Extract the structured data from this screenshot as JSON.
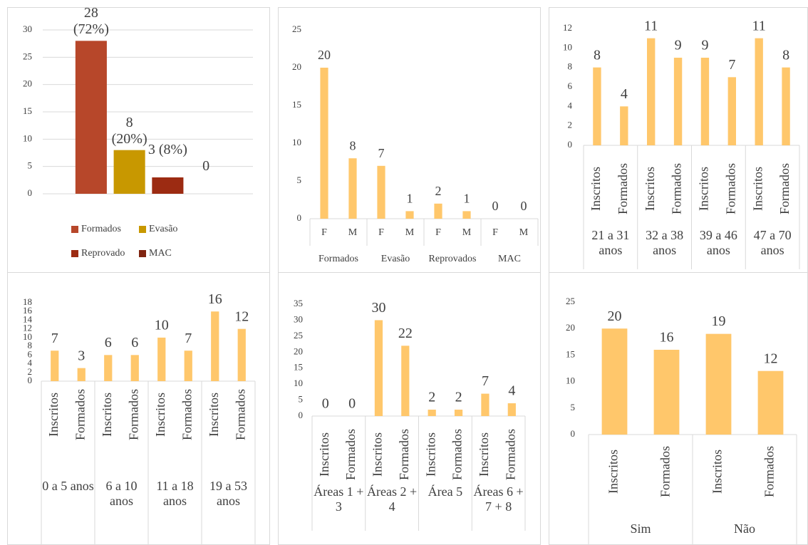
{
  "chart_data": [
    {
      "type": "bar",
      "categories": [
        "Formados",
        "Evasão",
        "Reprovado",
        "MAC"
      ],
      "values": [
        28,
        8,
        3,
        0
      ],
      "value_labels": [
        "28 (72%)",
        "8 (20%)",
        "3 (8%)",
        "0"
      ],
      "colors": [
        "#b7472a",
        "#c89800",
        "#9c2b12",
        "#7f2410"
      ],
      "ylim": [
        0,
        30
      ],
      "yticks": [
        0,
        5,
        10,
        15,
        20,
        25,
        30
      ],
      "grid": true,
      "legend": "bottom"
    },
    {
      "type": "bar",
      "categories": [
        "F",
        "M",
        "F",
        "M",
        "F",
        "M",
        "F",
        "M"
      ],
      "groups": [
        "Formados",
        "Evasão",
        "Reprovados",
        "MAC"
      ],
      "values": [
        20,
        8,
        7,
        1,
        2,
        1,
        0,
        0
      ],
      "color": "#ffc76b",
      "ylim": [
        0,
        25
      ],
      "yticks": [
        0,
        5,
        10,
        15,
        20,
        25
      ],
      "grid": false
    },
    {
      "type": "bar",
      "categories": [
        "Inscritos",
        "Formados",
        "Inscritos",
        "Formados",
        "Inscritos",
        "Formados",
        "Inscritos",
        "Formados"
      ],
      "groups": [
        "21 a 31 anos",
        "32 a 38 anos",
        "39 a 46 anos",
        "47 a 70 anos"
      ],
      "values": [
        8,
        4,
        11,
        9,
        9,
        7,
        11,
        8
      ],
      "color": "#ffc76b",
      "ylim": [
        0,
        12
      ],
      "yticks": [
        0,
        2,
        4,
        6,
        8,
        10,
        12
      ],
      "grid": false
    },
    {
      "type": "bar",
      "categories": [
        "Inscritos",
        "Formados",
        "Inscritos",
        "Formados",
        "Inscritos",
        "Formados",
        "Inscritos",
        "Formados"
      ],
      "groups": [
        "0 a 5 anos",
        "6 a 10 anos",
        "11 a 18 anos",
        "19 a 53 anos"
      ],
      "values": [
        7,
        3,
        6,
        6,
        10,
        7,
        16,
        12
      ],
      "color": "#ffc76b",
      "ylim": [
        0,
        18
      ],
      "yticks": [
        0,
        2,
        4,
        6,
        8,
        10,
        12,
        14,
        16,
        18
      ],
      "grid": false
    },
    {
      "type": "bar",
      "categories": [
        "Inscritos",
        "Formados",
        "Inscritos",
        "Formados",
        "Inscritos",
        "Formados",
        "Inscritos",
        "Formados"
      ],
      "groups": [
        "Áreas 1 + 3",
        "Áreas 2 + 4",
        "Área 5",
        "Áreas 6 + 7 + 8"
      ],
      "values": [
        0,
        0,
        30,
        22,
        2,
        2,
        7,
        4
      ],
      "color": "#ffc76b",
      "ylim": [
        0,
        35
      ],
      "yticks": [
        0,
        5,
        10,
        15,
        20,
        25,
        30,
        35
      ],
      "grid": false
    },
    {
      "type": "bar",
      "categories": [
        "Inscritos",
        "Formados",
        "Inscritos",
        "Formados"
      ],
      "groups": [
        "Sim",
        "Não"
      ],
      "values": [
        20,
        16,
        19,
        12
      ],
      "color": "#ffc76b",
      "ylim": [
        0,
        25
      ],
      "yticks": [
        0,
        5,
        10,
        15,
        20,
        25
      ],
      "grid": false
    }
  ]
}
